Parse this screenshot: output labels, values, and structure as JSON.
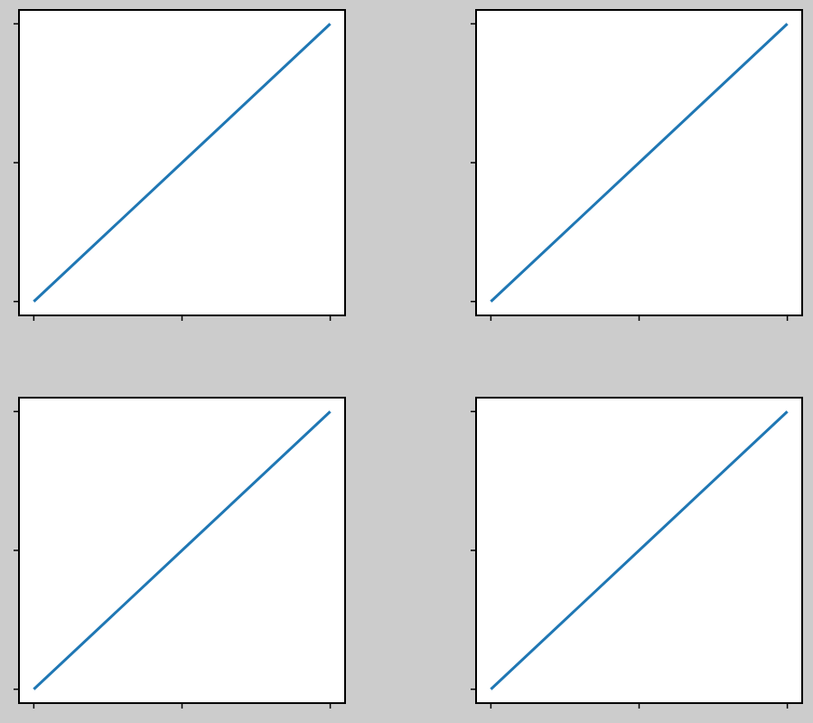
{
  "chart_data": [
    {
      "type": "line",
      "x": [
        0,
        1,
        2
      ],
      "values": [
        0,
        1,
        2
      ],
      "color": "#1f77b4",
      "xlim": [
        -0.1,
        2.1
      ],
      "ylim": [
        -0.1,
        2.1
      ],
      "xticks": [
        0,
        1,
        2
      ],
      "yticks": [
        0,
        1,
        2
      ]
    },
    {
      "type": "line",
      "x": [
        0,
        1,
        2
      ],
      "values": [
        0,
        1,
        2
      ],
      "color": "#1f77b4",
      "xlim": [
        -0.1,
        2.1
      ],
      "ylim": [
        -0.1,
        2.1
      ],
      "xticks": [
        0,
        1,
        2
      ],
      "yticks": [
        0,
        1,
        2
      ]
    },
    {
      "type": "line",
      "x": [
        0,
        1,
        2
      ],
      "values": [
        0,
        1,
        2
      ],
      "color": "#1f77b4",
      "xlim": [
        -0.1,
        2.1
      ],
      "ylim": [
        -0.1,
        2.1
      ],
      "xticks": [
        0,
        1,
        2
      ],
      "yticks": [
        0,
        1,
        2
      ]
    },
    {
      "type": "line",
      "x": [
        0,
        1,
        2
      ],
      "values": [
        0,
        1,
        2
      ],
      "color": "#1f77b4",
      "xlim": [
        -0.1,
        2.1
      ],
      "ylim": [
        -0.1,
        2.1
      ],
      "xticks": [
        0,
        1,
        2
      ],
      "yticks": [
        0,
        1,
        2
      ]
    }
  ]
}
